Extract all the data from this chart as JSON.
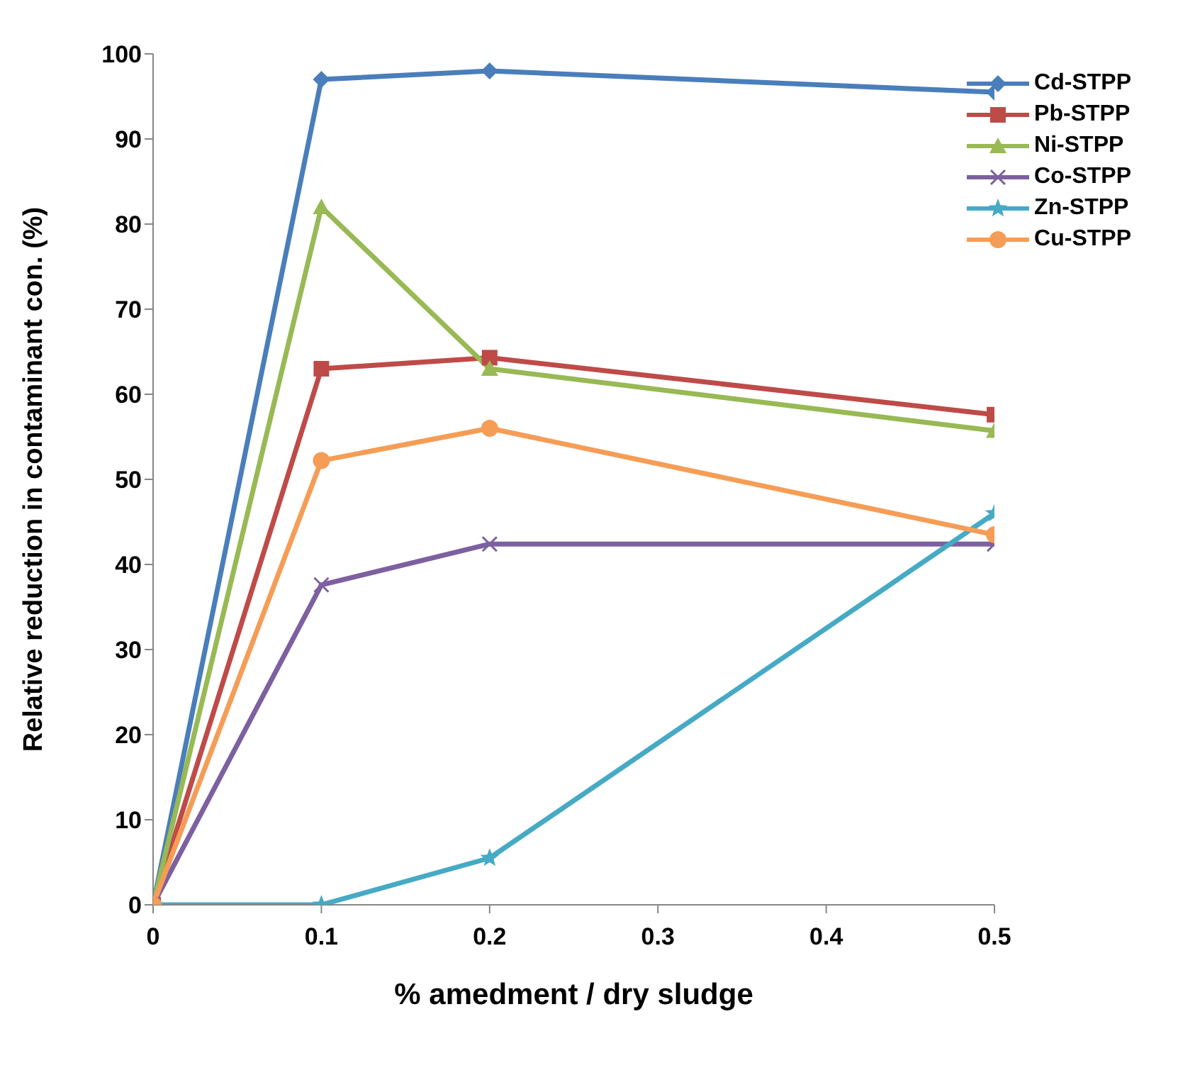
{
  "chart_data": {
    "type": "line",
    "xlabel": "% amedment / dry sludge",
    "ylabel": "Relative reduction in contaminant con. (%)",
    "x": [
      0,
      0.1,
      0.2,
      0.5
    ],
    "xlim": [
      0,
      0.5
    ],
    "xticks": [
      0,
      0.1,
      0.2,
      0.3,
      0.4,
      0.5
    ],
    "ylim": [
      0,
      100
    ],
    "yticks": [
      0,
      10,
      20,
      30,
      40,
      50,
      60,
      70,
      80,
      90,
      100
    ],
    "grid": false,
    "legend": "top right",
    "line_style": "solid",
    "series": [
      {
        "name": "Cd-STPP",
        "color": "#4a7ebb",
        "marker": "diamond",
        "values": [
          0,
          97,
          98,
          95.5
        ]
      },
      {
        "name": "Pb-STPP",
        "color": "#be4b48",
        "marker": "square",
        "values": [
          0,
          63,
          64.3,
          57.6
        ]
      },
      {
        "name": "Ni-STPP",
        "color": "#98b954",
        "marker": "triangle",
        "values": [
          0,
          82,
          63,
          55.7
        ]
      },
      {
        "name": "Co-STPP",
        "color": "#7d60a0",
        "marker": "cross",
        "values": [
          0,
          37.6,
          42.4,
          42.4
        ]
      },
      {
        "name": "Zn-STPP",
        "color": "#46aac5",
        "marker": "star",
        "values": [
          0,
          0,
          5.5,
          46
        ]
      },
      {
        "name": "Cu-STPP",
        "color": "#f59d56",
        "marker": "circle",
        "values": [
          0,
          52.2,
          56,
          43.5
        ]
      }
    ]
  }
}
